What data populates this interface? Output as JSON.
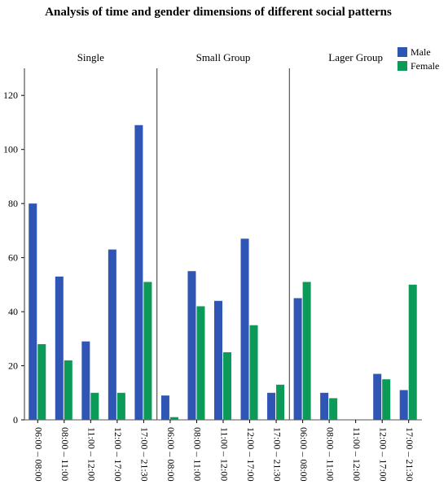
{
  "chart_data": {
    "type": "bar",
    "title": "Analysis of time and gender dimensions of different social patterns",
    "panels": [
      "Single",
      "Small Group",
      "Lager Group"
    ],
    "categories": [
      "06:00 – 08:00",
      "08:00 – 11:00",
      "11:00 – 12:00",
      "12:00 – 17:00",
      "17:00 – 21:30"
    ],
    "series": [
      {
        "name": "Male",
        "color": "#2f55b5",
        "values": [
          [
            80,
            53,
            29,
            63,
            109
          ],
          [
            9,
            55,
            44,
            67,
            10
          ],
          [
            45,
            10,
            0,
            17,
            11
          ]
        ]
      },
      {
        "name": "Female",
        "color": "#0b9a58",
        "values": [
          [
            28,
            22,
            10,
            10,
            51
          ],
          [
            1,
            42,
            25,
            35,
            13
          ],
          [
            51,
            8,
            0,
            15,
            50
          ]
        ]
      }
    ],
    "yticks": [
      0,
      20,
      40,
      60,
      80,
      100,
      120
    ],
    "ylim": [
      0,
      130
    ],
    "xlabel": "",
    "ylabel": "",
    "grid": false,
    "legend_position": "top-right"
  }
}
